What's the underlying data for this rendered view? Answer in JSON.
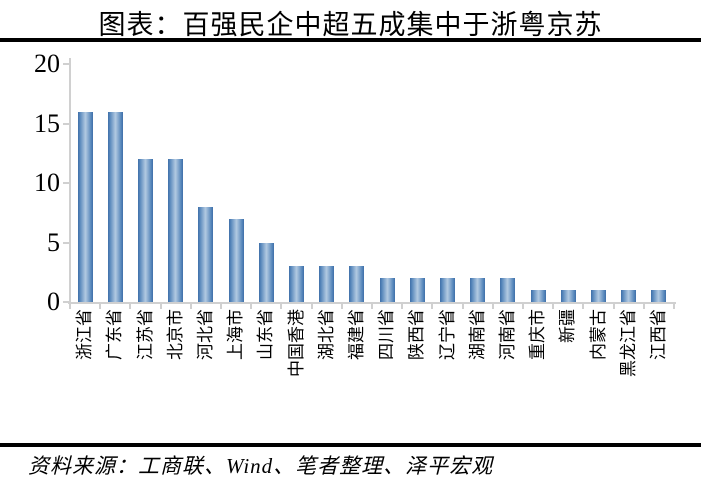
{
  "header": {
    "title": "图表：百强民企中超五成集中于浙粤京苏"
  },
  "footer": {
    "source": "资料来源：工商联、Wind、笔者整理、泽平宏观"
  },
  "colors": {
    "bar_edge": "#3f6fa8",
    "bar_mid": "#aec7e0",
    "axis": "#d0d0d0",
    "rule": "#000000",
    "background": "#ffffff",
    "text": "#000000"
  },
  "chart_data": {
    "type": "bar",
    "title": "图表：百强民企中超五成集中于浙粤京苏",
    "categories": [
      "浙江省",
      "广东省",
      "江苏省",
      "北京市",
      "河北省",
      "上海市",
      "山东省",
      "中国香港",
      "湖北省",
      "福建省",
      "四川省",
      "陕西省",
      "辽宁省",
      "湖南省",
      "河南省",
      "重庆市",
      "新疆",
      "内蒙古",
      "黑龙江省",
      "江西省"
    ],
    "values": [
      16,
      16,
      12,
      12,
      8,
      7,
      5,
      3,
      3,
      3,
      2,
      2,
      2,
      2,
      2,
      1,
      1,
      1,
      1,
      1
    ],
    "xlabel": "",
    "ylabel": "",
    "ylim": [
      0,
      20
    ],
    "yticks": [
      0,
      5,
      10,
      15,
      20
    ],
    "grid": false,
    "legend_position": "none",
    "x_label_rotation": -90
  }
}
